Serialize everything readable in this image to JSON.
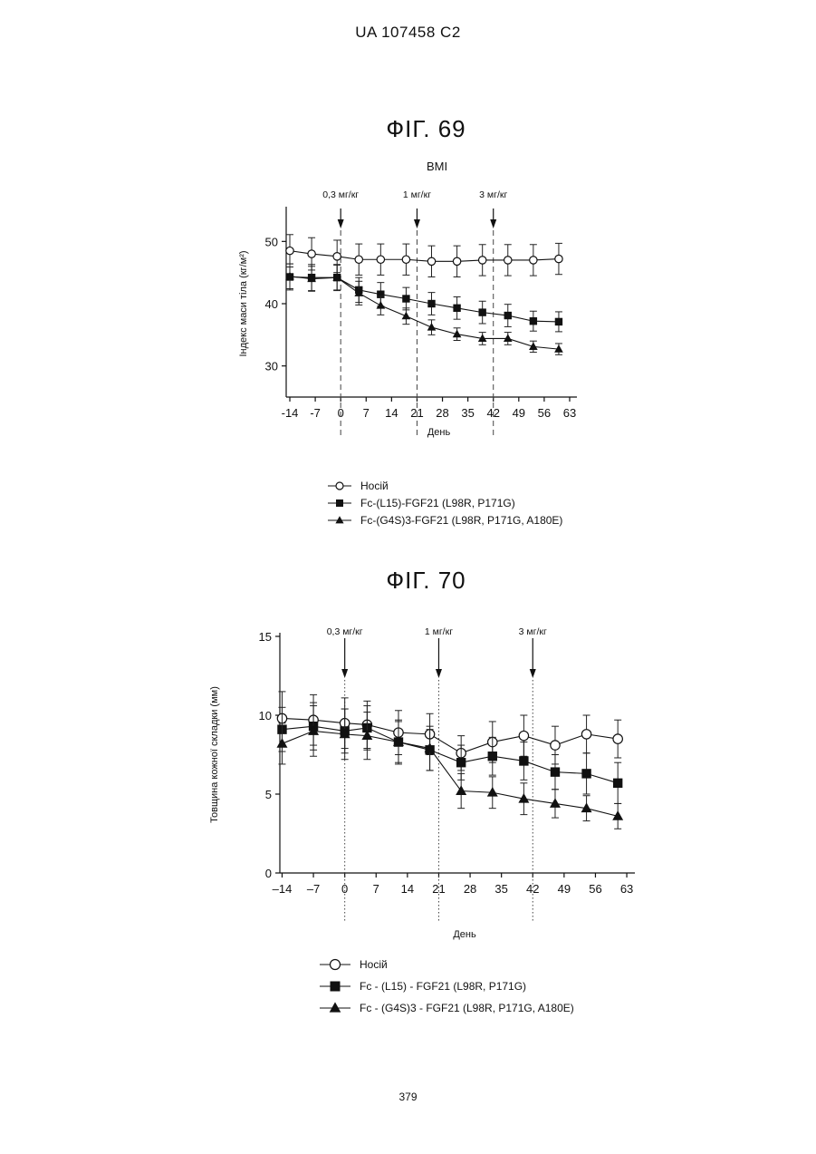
{
  "header": {
    "patent_id": "UA   107458   C2"
  },
  "footer": {
    "page_number": "379"
  },
  "icons": {
    "legend_markers": [
      "open-circle-icon",
      "filled-square-icon",
      "filled-triangle-icon"
    ],
    "dose_markers": "down-arrow-icon"
  },
  "chart_data": [
    {
      "type": "line",
      "figure_label": "ФІГ. 69",
      "title": "BMI",
      "xlabel": "День",
      "ylabel": "Індекс маси тіла (кг/м²)",
      "xlim": [
        -15,
        64
      ],
      "ylim": [
        25,
        55
      ],
      "x_ticks": [
        -14,
        -7,
        0,
        7,
        14,
        21,
        28,
        35,
        42,
        49,
        56,
        63
      ],
      "x_tick_labels": [
        "-14",
        "-7",
        "0",
        "7",
        "14",
        "21",
        "28",
        "35",
        "42",
        "49",
        "56",
        "63"
      ],
      "y_ticks": [
        30,
        40,
        50
      ],
      "y_tick_labels": [
        "30",
        "40",
        "50"
      ],
      "grid": false,
      "legend_position": "bottom",
      "annotations": [
        {
          "label": "0,3 мг/кг",
          "x": 0
        },
        {
          "label": "1 мг/кг",
          "x": 21
        },
        {
          "label": "3 мг/кг",
          "x": 42
        }
      ],
      "series": [
        {
          "name": "Носій",
          "marker": "open-circle",
          "x": [
            -14,
            -8,
            -1,
            5,
            11,
            18,
            25,
            32,
            39,
            46,
            53,
            60
          ],
          "y": [
            48.5,
            48.0,
            47.6,
            47.1,
            47.1,
            47.1,
            46.8,
            46.8,
            47.0,
            47.0,
            47.0,
            47.2
          ],
          "err": [
            2.6,
            2.6,
            2.6,
            2.5,
            2.5,
            2.5,
            2.5,
            2.5,
            2.5,
            2.5,
            2.5,
            2.5
          ]
        },
        {
          "name": "Fc-(L15)-FGF21 (L98R, P171G)",
          "marker": "filled-square",
          "x": [
            -14,
            -8,
            -1,
            5,
            11,
            18,
            25,
            32,
            39,
            46,
            53,
            60
          ],
          "y": [
            44.3,
            44.2,
            44.2,
            42.2,
            41.5,
            40.8,
            40.0,
            39.3,
            38.6,
            38.1,
            37.2,
            37.1
          ],
          "err": [
            2.1,
            2.1,
            2.1,
            2.0,
            1.9,
            1.8,
            1.8,
            1.8,
            1.8,
            1.8,
            1.6,
            1.6
          ]
        },
        {
          "name": "Fc-(G4S)3-FGF21 (L98R, P171G, A180E)",
          "marker": "filled-triangle",
          "x": [
            -14,
            -8,
            -1,
            5,
            11,
            18,
            25,
            32,
            39,
            46,
            53,
            60
          ],
          "y": [
            44.4,
            44.0,
            44.2,
            41.7,
            39.7,
            38.0,
            36.2,
            35.1,
            34.4,
            34.4,
            33.1,
            32.7
          ],
          "err": [
            2.0,
            2.0,
            2.0,
            1.9,
            1.5,
            1.3,
            1.2,
            1.0,
            1.0,
            1.0,
            0.9,
            0.9
          ]
        }
      ]
    },
    {
      "type": "line",
      "figure_label": "ФІГ. 70",
      "title": "",
      "xlabel": "День",
      "ylabel": "Товщина кожної складки (мм)",
      "xlim": [
        -14.5,
        64
      ],
      "ylim": [
        0,
        15
      ],
      "x_ticks": [
        -14,
        -7,
        0,
        7,
        14,
        21,
        28,
        35,
        42,
        49,
        56,
        63
      ],
      "x_tick_labels": [
        "–14",
        "–7",
        "0",
        "7",
        "14",
        "21",
        "28",
        "35",
        "42",
        "49",
        "56",
        "63"
      ],
      "y_ticks": [
        0,
        5,
        10,
        15
      ],
      "y_tick_labels": [
        "0",
        "5",
        "10",
        "15"
      ],
      "grid": false,
      "legend_position": "bottom",
      "annotations": [
        {
          "label": "0,3 мг/кг",
          "x": 0
        },
        {
          "label": "1 мг/кг",
          "x": 21
        },
        {
          "label": "3 мг/кг",
          "x": 42
        }
      ],
      "series": [
        {
          "name": "Носій",
          "marker": "open-circle",
          "x": [
            -14,
            -7,
            0,
            5,
            12,
            19,
            26,
            33,
            40,
            47,
            54,
            61
          ],
          "y": [
            9.8,
            9.7,
            9.5,
            9.4,
            8.9,
            8.8,
            7.6,
            8.3,
            8.7,
            8.1,
            8.8,
            8.5
          ],
          "err": [
            1.7,
            1.6,
            1.6,
            1.5,
            1.4,
            1.3,
            1.1,
            1.3,
            1.3,
            1.2,
            1.2,
            1.2
          ]
        },
        {
          "name": "Fc - (L15) - FGF21 (L98R, P171G)",
          "marker": "filled-square",
          "x": [
            -14,
            -7,
            0,
            5,
            12,
            19,
            26,
            33,
            40,
            47,
            54,
            61
          ],
          "y": [
            9.1,
            9.3,
            9.0,
            9.2,
            8.3,
            7.8,
            7.0,
            7.4,
            7.1,
            6.4,
            6.3,
            5.7
          ],
          "err": [
            1.4,
            1.5,
            1.4,
            1.4,
            1.3,
            1.3,
            1.1,
            1.2,
            1.2,
            1.1,
            1.3,
            1.3
          ]
        },
        {
          "name": "Fc - (G4S)3 - FGF21 (L98R, P171G, A180E)",
          "marker": "filled-triangle",
          "x": [
            -14,
            -7,
            0,
            5,
            12,
            19,
            26,
            33,
            40,
            47,
            54,
            61
          ],
          "y": [
            8.2,
            9.0,
            8.8,
            8.7,
            8.3,
            7.9,
            5.2,
            5.1,
            4.7,
            4.4,
            4.1,
            3.6
          ],
          "err": [
            1.3,
            1.6,
            1.6,
            1.5,
            1.4,
            1.4,
            1.1,
            1.0,
            1.0,
            0.9,
            0.8,
            0.8
          ]
        }
      ]
    }
  ]
}
